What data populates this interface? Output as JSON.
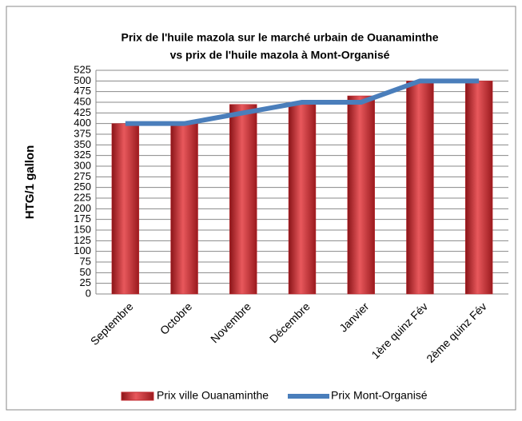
{
  "chart_data": {
    "type": "bar_line",
    "title": [
      "Prix de l'huile mazola sur le marché urbain de Ouanaminthe",
      "vs prix de l'huile mazola à Mont-Organisé"
    ],
    "y_label": "HTG/1 gallon",
    "categories": [
      "Septembre",
      "Octobre",
      "Novembre",
      "Décembre",
      "Janvier",
      "1ère quinz Fév",
      "2ème quinz Fév"
    ],
    "series": [
      {
        "name": "Prix ville Ouanaminthe",
        "type": "bar",
        "color": "#c0272d",
        "values": [
          400,
          400,
          445,
          450,
          465,
          500,
          500
        ]
      },
      {
        "name": "Prix Mont-Organisé",
        "type": "line",
        "color": "#4a7ebb",
        "values": [
          400,
          400,
          425,
          450,
          450,
          500,
          500
        ]
      }
    ],
    "ylim": [
      0,
      525
    ],
    "yticks": [
      0,
      25,
      50,
      75,
      100,
      125,
      150,
      175,
      200,
      225,
      250,
      275,
      300,
      325,
      350,
      375,
      400,
      425,
      450,
      475,
      500,
      525
    ],
    "grid": true,
    "legend": "bottom"
  }
}
